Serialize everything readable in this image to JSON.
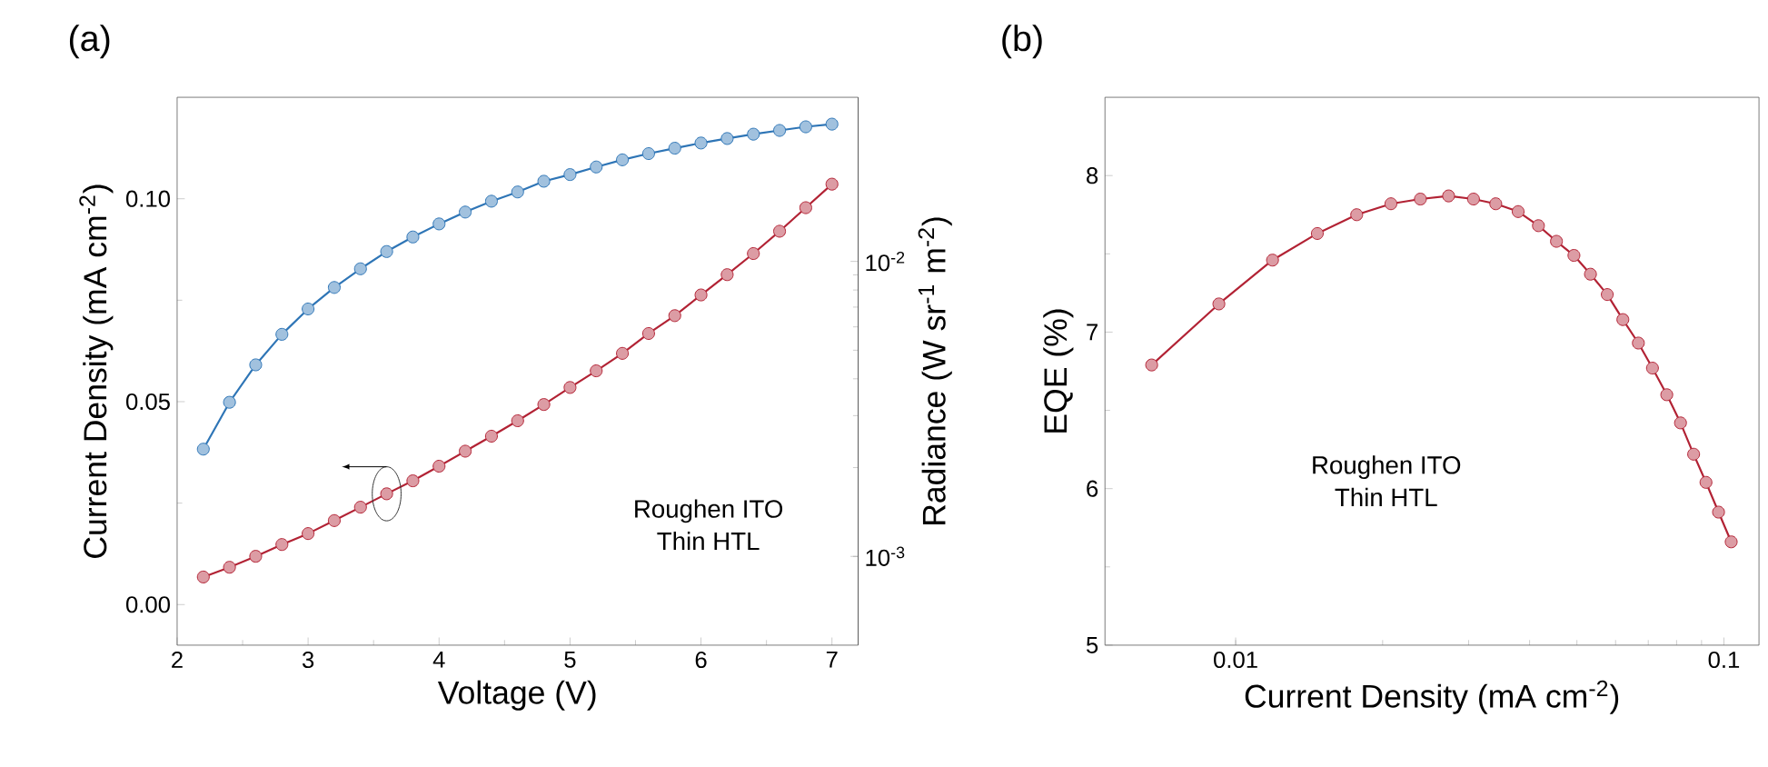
{
  "chart_data": [
    {
      "type": "line",
      "title": "(a)",
      "xlabel": "Voltage (V)",
      "ylabel": "Current Density (mA cm$^{-2}$)",
      "y2label": "Radiance (W sr$^{-1}$ m$^{-2}$)",
      "x": [
        2.2,
        2.4,
        2.6,
        2.8,
        3.0,
        3.2,
        3.4,
        3.6,
        3.8,
        4.0,
        4.2,
        4.4,
        4.6,
        4.8,
        5.0,
        5.2,
        5.4,
        5.6,
        5.8,
        6.0,
        6.2,
        6.4,
        6.6,
        6.8,
        7.0
      ],
      "series": [
        {
          "color": "#b22234",
          "values": [
            0.0068,
            0.0092,
            0.0119,
            0.0148,
            0.0175,
            0.0207,
            0.024,
            0.0273,
            0.0305,
            0.0341,
            0.0378,
            0.0415,
            0.0453,
            0.0493,
            0.0535,
            0.0576,
            0.0619,
            0.0668,
            0.0712,
            0.0763,
            0.0813,
            0.0865,
            0.092,
            0.0978,
            0.1036
          ]
        },
        {
          "color": "#2e75b6",
          "axis": "y2",
          "values": [
            0.00231,
            0.00333,
            0.00446,
            0.00566,
            0.0069,
            0.00816,
            0.00944,
            0.0108,
            0.0121,
            0.0134,
            0.0147,
            0.016,
            0.0172,
            0.0187,
            0.0197,
            0.0209,
            0.0221,
            0.0232,
            0.0242,
            0.0252,
            0.0261,
            0.027,
            0.0278,
            0.0286,
            0.0292
          ]
        }
      ],
      "xlim": [
        2,
        7.2
      ],
      "xticks": [
        2,
        3,
        4,
        5,
        6,
        7
      ],
      "ylim": [
        -0.01,
        0.125
      ],
      "yticks": [
        {
          "value": 0,
          "label": "0.00"
        },
        {
          "value": 0.05,
          "label": "0.05"
        },
        {
          "value": 0.1,
          "label": "0.10"
        }
      ],
      "y2lim": [
        0.0005,
        0.036
      ],
      "y2ticks": [
        {
          "value": 0.001,
          "label": "10$^{-3}$"
        },
        {
          "value": 0.01,
          "label": "10$^{-2}$"
        }
      ],
      "log": "y2",
      "marker": "circle",
      "line_style": "solid",
      "grid": false,
      "annotations": [
        "Roughen ITO",
        "Thin HTL"
      ]
    },
    {
      "type": "line",
      "title": "(b)",
      "xlabel": "Current Density (mA cm$^{-2}$)",
      "ylabel": "EQE (%)",
      "x": [
        0.00673,
        0.00924,
        0.0119,
        0.0147,
        0.0177,
        0.0208,
        0.0239,
        0.0273,
        0.0307,
        0.0341,
        0.0379,
        0.0417,
        0.0454,
        0.0493,
        0.0533,
        0.0577,
        0.0621,
        0.0668,
        0.0714,
        0.0764,
        0.0815,
        0.0867,
        0.0919,
        0.0975,
        0.1035
      ],
      "series": [
        {
          "color": "#b22234",
          "values": [
            6.79,
            7.18,
            7.46,
            7.63,
            7.75,
            7.82,
            7.85,
            7.87,
            7.85,
            7.82,
            7.77,
            7.68,
            7.58,
            7.49,
            7.37,
            7.24,
            7.08,
            6.93,
            6.77,
            6.6,
            6.42,
            6.22,
            6.04,
            5.85,
            5.66
          ]
        }
      ],
      "xlim": [
        0.0054,
        0.118
      ],
      "xticks": [
        {
          "value": 0.01,
          "label": "0.01"
        },
        0.1
      ],
      "ylim": [
        5,
        8.5
      ],
      "yticks": [
        5,
        6,
        7,
        8
      ],
      "log": "x",
      "marker": "circle",
      "line_style": "solid",
      "grid": false,
      "annotations": [
        "Roughen ITO",
        "Thin HTL"
      ]
    }
  ]
}
